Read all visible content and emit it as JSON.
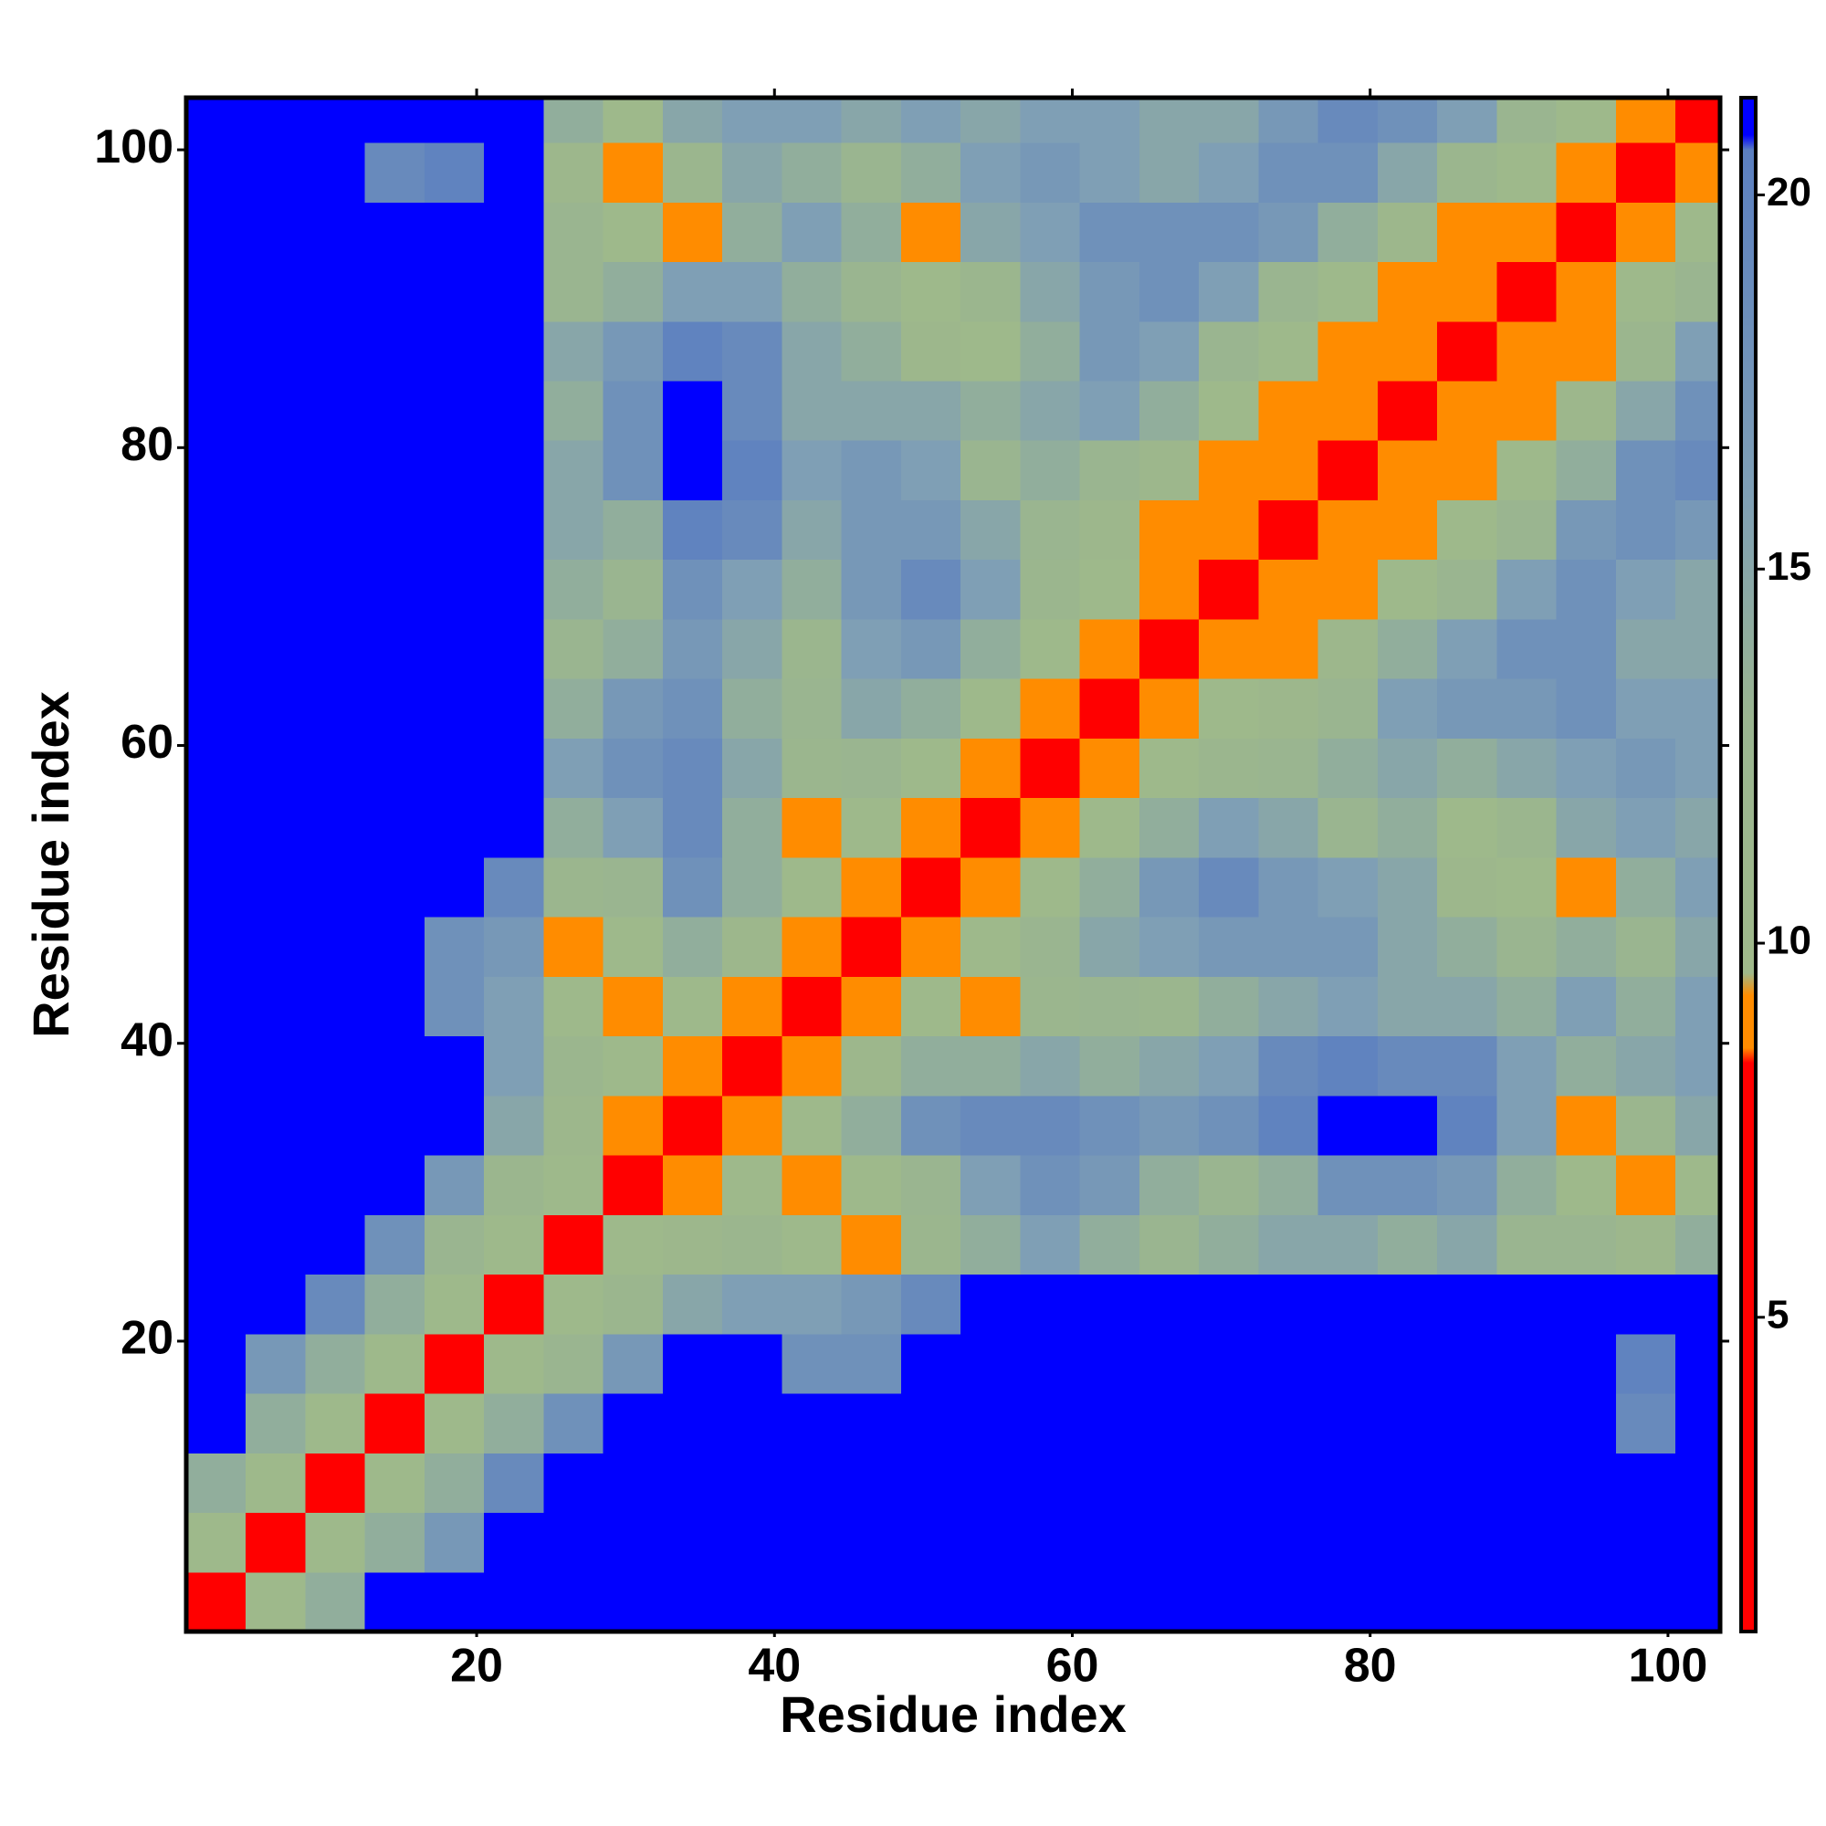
{
  "chart_data": {
    "type": "heatmap",
    "xlabel": "Residue index",
    "ylabel": "Residue index",
    "xbins": [
      0.5,
      4.5,
      8.5,
      12.5,
      16.5,
      20.5,
      24.5,
      28.5,
      32.5,
      36.5,
      40.5,
      44.5,
      48.5,
      52.5,
      56.5,
      60.5,
      64.5,
      68.5,
      72.5,
      76.5,
      80.5,
      84.5,
      88.5,
      92.5,
      96.5,
      100.5,
      103.5
    ],
    "ybins": [
      0.5,
      4.5,
      8.5,
      12.5,
      16.5,
      20.5,
      24.5,
      28.5,
      32.5,
      36.5,
      40.5,
      44.5,
      48.5,
      52.5,
      56.5,
      60.5,
      64.5,
      68.5,
      72.5,
      76.5,
      80.5,
      84.5,
      88.5,
      92.5,
      96.5,
      100.5,
      103.5
    ],
    "z": [
      [
        3,
        10,
        14,
        22,
        22,
        22,
        22,
        22,
        22,
        22,
        22,
        22,
        22,
        22,
        22,
        22,
        22,
        22,
        22,
        22,
        22,
        22,
        22,
        22,
        22,
        22
      ],
      [
        10,
        3,
        10,
        14,
        17,
        22,
        22,
        22,
        22,
        22,
        22,
        22,
        22,
        22,
        22,
        22,
        22,
        22,
        22,
        22,
        22,
        22,
        22,
        22,
        22,
        22
      ],
      [
        14,
        10,
        3,
        10,
        14,
        19,
        22,
        22,
        22,
        22,
        22,
        22,
        22,
        22,
        22,
        22,
        22,
        22,
        22,
        22,
        22,
        22,
        22,
        22,
        22,
        22
      ],
      [
        22,
        14,
        10,
        3,
        10,
        14,
        18,
        22,
        22,
        22,
        22,
        22,
        22,
        22,
        22,
        22,
        22,
        22,
        22,
        22,
        22,
        22,
        22,
        22,
        19,
        22
      ],
      [
        22,
        17,
        14,
        10,
        3,
        10,
        13,
        17,
        22,
        22,
        18,
        18,
        22,
        22,
        22,
        22,
        22,
        22,
        22,
        22,
        22,
        22,
        22,
        22,
        20,
        22
      ],
      [
        22,
        22,
        19,
        14,
        10,
        3,
        10,
        12,
        15,
        16,
        16,
        17,
        19,
        21,
        21,
        21,
        21,
        21,
        21,
        21,
        21,
        21,
        21,
        21,
        21,
        21
      ],
      [
        22,
        22,
        22,
        18,
        13,
        10,
        3,
        10,
        11,
        12,
        10,
        9,
        12,
        14,
        16,
        14,
        13,
        14,
        15,
        15,
        14,
        15,
        13,
        13,
        11,
        14
      ],
      [
        22,
        22,
        22,
        22,
        17,
        12,
        10,
        3,
        9,
        10,
        9,
        10,
        13,
        16,
        18,
        17,
        14,
        13,
        14,
        18,
        18,
        17,
        14,
        10,
        9,
        10
      ],
      [
        22,
        22,
        22,
        22,
        22,
        15,
        11,
        9,
        3,
        9,
        10,
        14,
        18,
        19,
        19,
        18,
        17,
        18,
        20,
        21,
        21,
        20,
        16,
        9,
        12,
        15
      ],
      [
        22,
        22,
        22,
        22,
        22,
        16,
        12,
        10,
        9,
        3,
        9,
        11,
        14,
        14,
        15,
        14,
        15,
        16,
        19,
        20,
        19,
        19,
        16,
        14,
        15,
        16
      ],
      [
        22,
        22,
        22,
        22,
        18,
        16,
        10,
        9,
        10,
        9,
        3,
        9,
        10,
        9,
        12,
        13,
        12,
        14,
        15,
        16,
        15,
        15,
        14,
        16,
        14,
        16
      ],
      [
        22,
        22,
        22,
        22,
        18,
        17,
        9,
        10,
        14,
        11,
        9,
        3,
        9,
        10,
        13,
        15,
        16,
        17,
        17,
        17,
        15,
        14,
        13,
        14,
        13,
        15
      ],
      [
        22,
        22,
        22,
        22,
        22,
        19,
        12,
        13,
        18,
        14,
        10,
        9,
        3,
        9,
        10,
        14,
        17,
        19,
        17,
        16,
        15,
        11,
        10,
        9,
        14,
        16
      ],
      [
        22,
        22,
        22,
        22,
        22,
        21,
        14,
        16,
        19,
        14,
        9,
        10,
        9,
        3,
        9,
        10,
        14,
        16,
        15,
        13,
        14,
        10,
        12,
        15,
        16,
        15
      ],
      [
        22,
        22,
        22,
        22,
        22,
        21,
        16,
        18,
        19,
        15,
        12,
        13,
        10,
        9,
        3,
        9,
        10,
        12,
        13,
        14,
        15,
        14,
        15,
        16,
        17,
        16
      ],
      [
        22,
        22,
        22,
        22,
        22,
        21,
        14,
        17,
        18,
        14,
        13,
        15,
        14,
        10,
        9,
        3,
        9,
        10,
        11,
        13,
        16,
        17,
        17,
        18,
        16,
        16
      ],
      [
        22,
        22,
        22,
        22,
        22,
        21,
        13,
        14,
        17,
        15,
        12,
        16,
        17,
        14,
        10,
        9,
        3,
        9,
        9,
        11,
        14,
        16,
        18,
        18,
        15,
        15
      ],
      [
        22,
        22,
        22,
        22,
        22,
        21,
        14,
        13,
        18,
        16,
        14,
        17,
        19,
        16,
        12,
        10,
        9,
        3,
        9,
        9,
        10,
        13,
        16,
        18,
        16,
        15
      ],
      [
        22,
        22,
        22,
        22,
        22,
        21,
        15,
        14,
        20,
        19,
        15,
        17,
        17,
        15,
        13,
        11,
        9,
        9,
        3,
        9,
        9,
        10,
        13,
        17,
        18,
        17
      ],
      [
        22,
        22,
        22,
        22,
        22,
        21,
        15,
        18,
        21,
        20,
        16,
        17,
        16,
        13,
        14,
        13,
        11,
        9,
        9,
        3,
        9,
        9,
        10,
        14,
        18,
        19
      ],
      [
        22,
        22,
        22,
        22,
        22,
        21,
        14,
        18,
        21,
        19,
        15,
        15,
        15,
        14,
        15,
        16,
        14,
        10,
        9,
        9,
        3,
        9,
        9,
        11,
        15,
        18
      ],
      [
        22,
        22,
        22,
        22,
        22,
        21,
        15,
        17,
        20,
        19,
        15,
        14,
        11,
        10,
        14,
        17,
        16,
        13,
        10,
        9,
        9,
        3,
        9,
        9,
        12,
        16
      ],
      [
        22,
        22,
        22,
        22,
        22,
        21,
        13,
        14,
        16,
        16,
        14,
        13,
        10,
        12,
        15,
        17,
        18,
        16,
        13,
        10,
        9,
        9,
        3,
        9,
        10,
        13
      ],
      [
        22,
        22,
        22,
        22,
        22,
        21,
        13,
        10,
        9,
        14,
        16,
        14,
        9,
        15,
        16,
        18,
        18,
        18,
        17,
        14,
        11,
        9,
        9,
        3,
        9,
        10
      ],
      [
        22,
        22,
        22,
        19,
        20,
        21,
        11,
        9,
        12,
        15,
        14,
        13,
        14,
        16,
        17,
        16,
        15,
        16,
        18,
        18,
        15,
        12,
        10,
        9,
        3,
        9
      ],
      [
        22,
        22,
        22,
        22,
        22,
        21,
        14,
        10,
        15,
        16,
        16,
        15,
        16,
        15,
        16,
        16,
        15,
        15,
        17,
        19,
        18,
        16,
        13,
        10,
        9,
        3
      ]
    ],
    "xlim": [
      0.5,
      103.5
    ],
    "ylim": [
      0.5,
      103.5
    ],
    "xticks": [
      20,
      40,
      60,
      80,
      100
    ],
    "yticks": [
      20,
      40,
      60,
      80,
      100
    ],
    "zlim": [
      0.8,
      21.3
    ],
    "zticks": [
      5,
      10,
      15,
      20
    ],
    "colorscale": [
      [
        0.8,
        "#ff0000"
      ],
      [
        8.4,
        "#ff0000"
      ],
      [
        8.6,
        "#ff8c00"
      ],
      [
        9.3,
        "#ff8c00"
      ],
      [
        9.6,
        "#9fb98a"
      ],
      [
        13,
        "#9ab590"
      ],
      [
        16,
        "#7f9fb5"
      ],
      [
        20.6,
        "#5b7fc0"
      ],
      [
        20.8,
        "#0000ff"
      ],
      [
        21.3,
        "#0000ff"
      ]
    ]
  }
}
